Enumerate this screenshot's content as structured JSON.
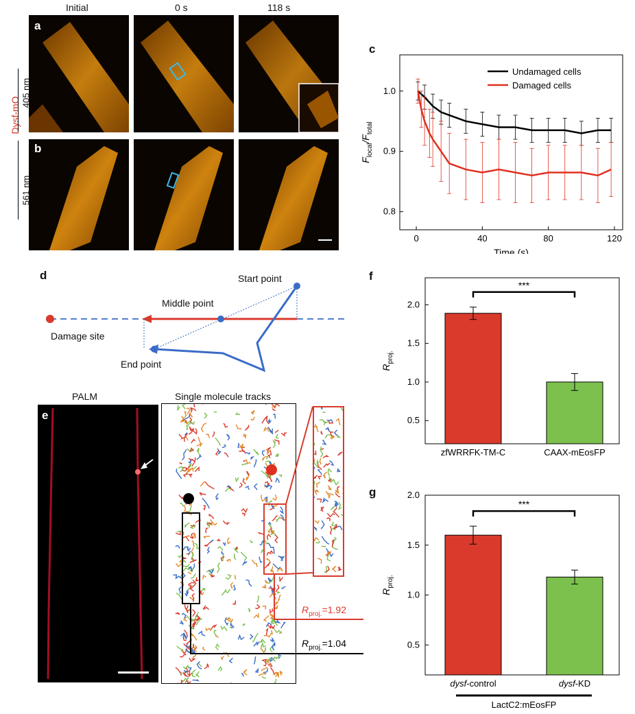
{
  "panels": {
    "a": "a",
    "b": "b",
    "c": "c",
    "d": "d",
    "e": "e",
    "f": "f",
    "g": "g"
  },
  "time_headers": [
    "Initial",
    "0 s",
    "118 s"
  ],
  "side_labels": {
    "dysf": "Dysf-mO",
    "nm405": "405 nm",
    "nm561": "561 nm"
  },
  "colors": {
    "red": "#d93a2b",
    "green": "#7cc04e",
    "black": "#000000",
    "blue": "#3a6cc7",
    "orange": "#f0a020"
  },
  "diagram_d": {
    "start": "Start point",
    "middle": "Middle point",
    "end": "End point",
    "damage": "Damage site"
  },
  "panel_e": {
    "palm": "PALM",
    "tracks": "Single molecule tracks",
    "rproj_red": "=1.92",
    "rproj_black": "=1.04",
    "R": "R",
    "proj": "proj."
  },
  "chart_data": [
    {
      "id": "c",
      "type": "line",
      "xlabel": "Time (s)",
      "ylabel_main": "F",
      "ylabel_sub1": "local",
      "ylabel_mid": "/F",
      "ylabel_sub2": "total",
      "xlim": [
        -10,
        125
      ],
      "ylim": [
        0.77,
        1.06
      ],
      "xticks": [
        0,
        40,
        80,
        120
      ],
      "yticks": [
        0.8,
        0.9,
        1.0
      ],
      "xtick_labels": [
        "0",
        "40",
        "80",
        "120"
      ],
      "ytick_labels": [
        "0.8",
        "0.9",
        "1.0"
      ],
      "legend_position": "top-right",
      "series": [
        {
          "name": "Undamaged cells",
          "color": "#000000",
          "x": [
            1,
            5,
            10,
            15,
            20,
            30,
            40,
            50,
            60,
            70,
            80,
            90,
            100,
            110,
            118
          ],
          "y": [
            1.0,
            0.99,
            0.975,
            0.965,
            0.96,
            0.95,
            0.945,
            0.94,
            0.94,
            0.935,
            0.935,
            0.935,
            0.93,
            0.935,
            0.935
          ],
          "err": [
            0.015,
            0.02,
            0.02,
            0.02,
            0.02,
            0.02,
            0.02,
            0.02,
            0.02,
            0.02,
            0.02,
            0.02,
            0.02,
            0.02,
            0.02
          ]
        },
        {
          "name": "Damaged cells",
          "color": "#e03020",
          "x": [
            1,
            3,
            5,
            8,
            10,
            15,
            20,
            30,
            40,
            50,
            60,
            70,
            80,
            90,
            100,
            110,
            118
          ],
          "y": [
            1.0,
            0.97,
            0.95,
            0.93,
            0.92,
            0.9,
            0.88,
            0.87,
            0.865,
            0.87,
            0.865,
            0.86,
            0.865,
            0.865,
            0.865,
            0.86,
            0.87
          ],
          "err": [
            0.02,
            0.03,
            0.04,
            0.04,
            0.045,
            0.05,
            0.05,
            0.05,
            0.05,
            0.05,
            0.05,
            0.045,
            0.045,
            0.045,
            0.045,
            0.045,
            0.045
          ]
        }
      ]
    },
    {
      "id": "f",
      "type": "bar",
      "ylabel_main": "R",
      "ylabel_sub": "proj.",
      "ylim": [
        0.2,
        2.35
      ],
      "yticks": [
        0.5,
        1.0,
        1.5,
        2.0
      ],
      "ytick_labels": [
        "0.5",
        "1.0",
        "1.5",
        "2.0"
      ],
      "categories": [
        "zfWRRFK-TM-C",
        "CAAX-mEosFP"
      ],
      "values": [
        1.89,
        1.0
      ],
      "errors": [
        0.08,
        0.11
      ],
      "bar_colors": [
        "#d93a2b",
        "#7cc04e"
      ],
      "significance": "***"
    },
    {
      "id": "g",
      "type": "bar",
      "ylabel_main": "R",
      "ylabel_sub": "proj.",
      "ylim": [
        0.2,
        2.0
      ],
      "yticks": [
        0.5,
        1.0,
        1.5,
        2.0
      ],
      "ytick_labels": [
        "0.5",
        "1.0",
        "1.5",
        "2.0"
      ],
      "categories": [
        "dysf-control",
        "dysf-KD"
      ],
      "category_italic": [
        "dysf",
        "dysf"
      ],
      "category_rest": [
        "-control",
        "-KD"
      ],
      "values": [
        1.6,
        1.18
      ],
      "errors": [
        0.09,
        0.07
      ],
      "bar_colors": [
        "#d93a2b",
        "#7cc04e"
      ],
      "significance": "***",
      "group_label": "LactC2:mEosFP"
    }
  ]
}
